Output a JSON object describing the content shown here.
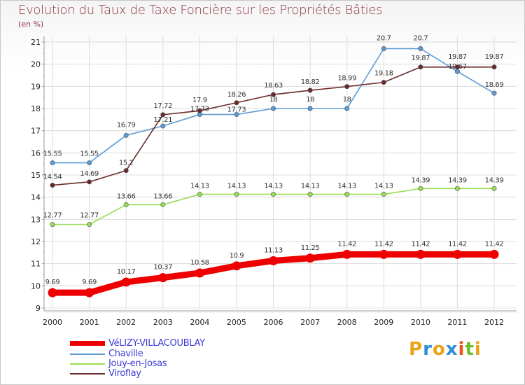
{
  "page": {
    "title": "Evolution du Taux de Taxe Foncière sur les Propriétés Bâties",
    "unit": "(en %)",
    "logo": "Proxiti"
  },
  "chart_data": {
    "type": "line",
    "title": "Evolution du Taux de Taxe Foncière sur les Propriétés Bâties",
    "ylabel": "(en %)",
    "xlabel": "",
    "x": [
      "2000",
      "2001",
      "2002",
      "2003",
      "2004",
      "2005",
      "2006",
      "2007",
      "2008",
      "2009",
      "2010",
      "2011",
      "2012"
    ],
    "ylim": [
      9,
      21
    ],
    "yticks": [
      9,
      10,
      11,
      12,
      13,
      14,
      15,
      16,
      17,
      18,
      19,
      20,
      21
    ],
    "legend_position": "bottom-left",
    "series": [
      {
        "name": "VéLIZY-VILLACOUBLAY",
        "color": "#ee0000",
        "width": "thick",
        "values": [
          9.69,
          9.69,
          10.17,
          10.37,
          10.58,
          10.9,
          11.13,
          11.25,
          11.42,
          11.42,
          11.42,
          11.42,
          11.42
        ],
        "labels": [
          "9.69",
          "9.69",
          "10.17",
          "10.37",
          "10.58",
          "10.9",
          "11.13",
          "11.25",
          "11.42",
          "11.42",
          "11.42",
          "11.42",
          "11.42"
        ]
      },
      {
        "name": "Chaville",
        "color": "#5b9bd5",
        "width": "thin",
        "values": [
          15.55,
          15.55,
          16.79,
          17.21,
          17.73,
          17.73,
          18,
          18,
          18,
          20.7,
          20.7,
          19.67,
          18.69
        ],
        "labels": [
          "15.55",
          "15.55",
          "16.79",
          "17.21",
          "17.73",
          "17.73",
          "18",
          "18",
          "18",
          "20.7",
          "20.7",
          "19.67",
          "18.69"
        ]
      },
      {
        "name": "Jouy-en-Josas",
        "color": "#99dd55",
        "width": "thin",
        "values": [
          12.77,
          12.77,
          13.66,
          13.66,
          14.13,
          14.13,
          14.13,
          14.13,
          14.13,
          14.13,
          14.39,
          14.39,
          14.39
        ],
        "labels": [
          "12.77",
          "12.77",
          "13.66",
          "13.66",
          "14.13",
          "14.13",
          "14.13",
          "14.13",
          "14.13",
          "14.13",
          "14.39",
          "14.39",
          "14.39"
        ]
      },
      {
        "name": "Viroflay",
        "color": "#6b2a2a",
        "width": "thin",
        "values": [
          14.54,
          14.69,
          15.2,
          17.72,
          17.9,
          18.26,
          18.63,
          18.82,
          18.99,
          19.18,
          19.87,
          19.87,
          19.87
        ],
        "labels": [
          "14.54",
          "14.69",
          "15.2",
          "17.72",
          "17.9",
          "18.26",
          "18.63",
          "18.82",
          "18.99",
          "19.18",
          "19.87",
          "19.87",
          "19.87"
        ]
      }
    ]
  },
  "legend": {
    "items": [
      {
        "label": "VéLIZY-VILLACOUBLAY",
        "color": "#ee0000"
      },
      {
        "label": "Chaville",
        "color": "#5b9bd5"
      },
      {
        "label": "Jouy-en-Josas",
        "color": "#99dd55"
      },
      {
        "label": "Viroflay",
        "color": "#6b2a2a"
      }
    ]
  }
}
